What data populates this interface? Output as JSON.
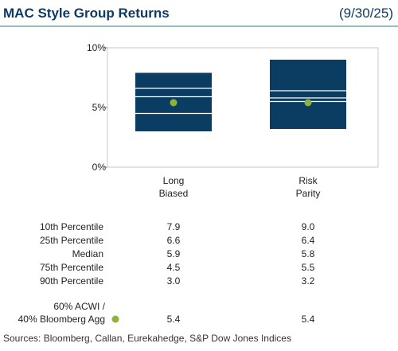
{
  "chart_data": {
    "type": "floating_box",
    "title": "MAC Style Group Returns",
    "date": "(9/30/25)",
    "categories": [
      "Long\nBiased",
      "Risk\nParity"
    ],
    "ylim": [
      0,
      10
    ],
    "yticks": [
      {
        "value": 0,
        "label": "0%"
      },
      {
        "value": 5,
        "label": "5%"
      },
      {
        "value": 10,
        "label": "10%"
      }
    ],
    "box_color": "#0b3d63",
    "series": [
      {
        "name": "10th Percentile",
        "values": [
          7.9,
          9.0
        ],
        "value_labels": [
          "7.9",
          "9.0"
        ]
      },
      {
        "name": "25th Percentile",
        "values": [
          6.6,
          6.4
        ],
        "value_labels": [
          "6.6",
          "6.4"
        ]
      },
      {
        "name": "Median",
        "values": [
          5.9,
          5.8
        ],
        "value_labels": [
          "5.9",
          "5.8"
        ]
      },
      {
        "name": "75th Percentile",
        "values": [
          4.5,
          5.5
        ],
        "value_labels": [
          "4.5",
          "5.5"
        ]
      },
      {
        "name": "90th Percentile",
        "values": [
          3.0,
          3.2
        ],
        "value_labels": [
          "3.0",
          "3.2"
        ]
      }
    ],
    "benchmark": {
      "name": "60% ACWI /\n40% Bloomberg Agg",
      "color": "#8db33a",
      "values": [
        5.4,
        5.4
      ],
      "value_labels": [
        "5.4",
        "5.4"
      ]
    },
    "source": "Sources: Bloomberg, Callan, Eurekahedge, S&P Dow Jones Indices"
  }
}
